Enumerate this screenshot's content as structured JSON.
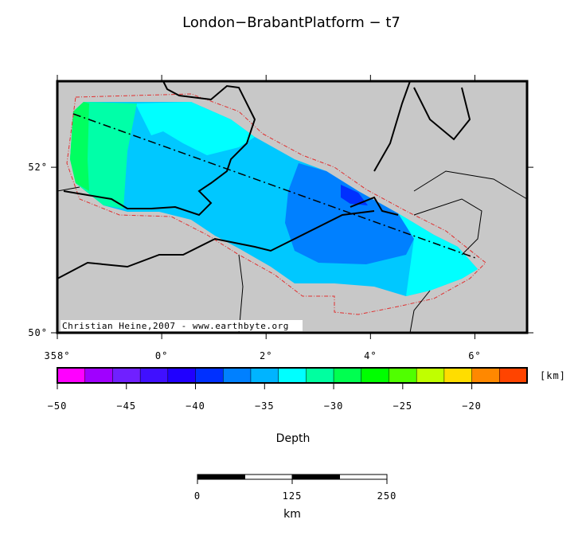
{
  "title": "London−BrabantPlatform − t7",
  "map": {
    "lon_range": [
      -2,
      7
    ],
    "lat_range": [
      50,
      53.04
    ],
    "lon_ticks": [
      {
        "value": -2,
        "label": "358°"
      },
      {
        "value": 0,
        "label": "0°"
      },
      {
        "value": 2,
        "label": "2°"
      },
      {
        "value": 4,
        "label": "4°"
      },
      {
        "value": 6,
        "label": "6°"
      }
    ],
    "lat_ticks": [
      {
        "value": 50,
        "label": "50°"
      },
      {
        "value": 52,
        "label": "52°"
      }
    ],
    "credit": "Christian Heine,2007 - www.earthbyte.org"
  },
  "colorbar": {
    "range": [
      -50,
      -16
    ],
    "colors": [
      "#ff00ff",
      "#a000ff",
      "#7020ff",
      "#4010ff",
      "#2000ff",
      "#0030ff",
      "#0080ff",
      "#00b4ff",
      "#00ffff",
      "#00ffa0",
      "#00ff50",
      "#00ff00",
      "#50ff00",
      "#c0ff00",
      "#ffdd00",
      "#ff8800",
      "#ff4400"
    ],
    "ticks": [
      {
        "value": -50,
        "label": "−50"
      },
      {
        "value": -45,
        "label": "−45"
      },
      {
        "value": -40,
        "label": "−40"
      },
      {
        "value": -35,
        "label": "−35"
      },
      {
        "value": -30,
        "label": "−30"
      },
      {
        "value": -25,
        "label": "−25"
      },
      {
        "value": -20,
        "label": "−20"
      }
    ],
    "unit": "[km]",
    "label": "Depth"
  },
  "scale_bar": {
    "range": [
      0,
      250
    ],
    "ticks": [
      0,
      125,
      250
    ],
    "unit": "km"
  }
}
